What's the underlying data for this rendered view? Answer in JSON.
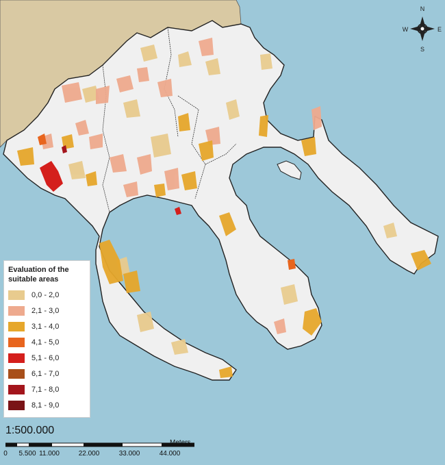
{
  "legend": {
    "title": "Evaluation of the suitable areas",
    "items": [
      {
        "label": "0,0 - 2,0",
        "color": "#e8cb8e"
      },
      {
        "label": "2,1 - 3,0",
        "color": "#eeaa8e"
      },
      {
        "label": "3,1 - 4,0",
        "color": "#e6a72b"
      },
      {
        "label": "4,1 - 5,0",
        "color": "#e8651e"
      },
      {
        "label": "5,1 - 6,0",
        "color": "#d41f1c"
      },
      {
        "label": "6,1 - 7,0",
        "color": "#a84f1a"
      },
      {
        "label": "7,1 - 8,0",
        "color": "#a3151c"
      },
      {
        "label": "8,1 - 9,0",
        "color": "#7a1417"
      }
    ]
  },
  "scale": {
    "ratio": "1:500.000",
    "unit": "Meters",
    "ticks": [
      "0",
      "5.500",
      "11.000",
      "22.000",
      "33.000",
      "44.000"
    ]
  },
  "compass": {
    "n": "N",
    "s": "S",
    "e": "E",
    "w": "W"
  },
  "colors": {
    "sea": "#9dc8d9",
    "land": "#f0f0f0",
    "mainland": "#d9c9a3",
    "border": "#222222"
  }
}
